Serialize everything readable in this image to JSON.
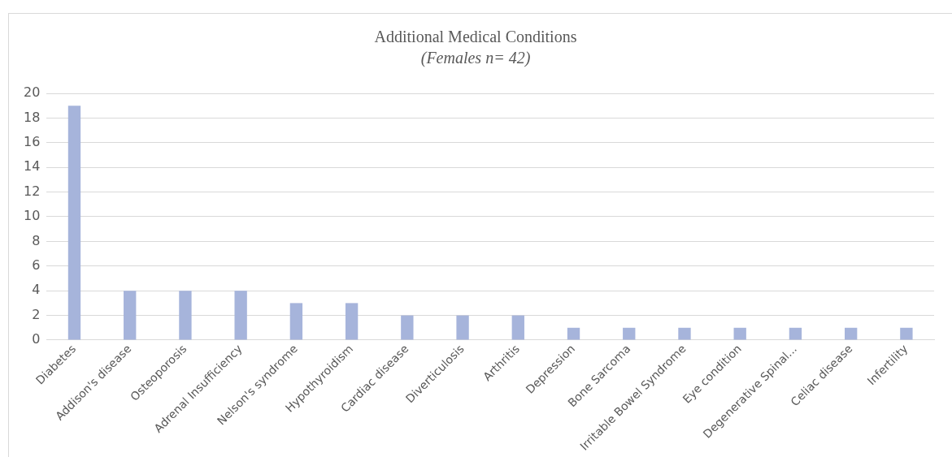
{
  "chart_data": {
    "type": "bar",
    "title": "Additional Medical Conditions",
    "subtitle": "(Females n= 42)",
    "categories": [
      "Diabetes",
      "Addison's disease",
      "Osteoporosis",
      "Adrenal Insufficiency",
      "Nelson's syndrome",
      "Hypothyroidism",
      "Cardiac disease",
      "Diverticulosis",
      "Arthritis",
      "Depression",
      "Bone Sarcoma",
      "Irritable Bowel Syndrome",
      "Eye condition",
      "Degenerative Spinal...",
      "Celiac disease",
      "Infertility"
    ],
    "values": [
      19,
      4,
      4,
      4,
      3,
      3,
      2,
      2,
      2,
      1,
      1,
      1,
      1,
      1,
      1,
      1
    ],
    "color": "#a6b4db",
    "ylim": [
      0,
      20
    ],
    "yticks": [
      0,
      2,
      4,
      6,
      8,
      10,
      12,
      14,
      16,
      18,
      20
    ],
    "grid": "y"
  }
}
